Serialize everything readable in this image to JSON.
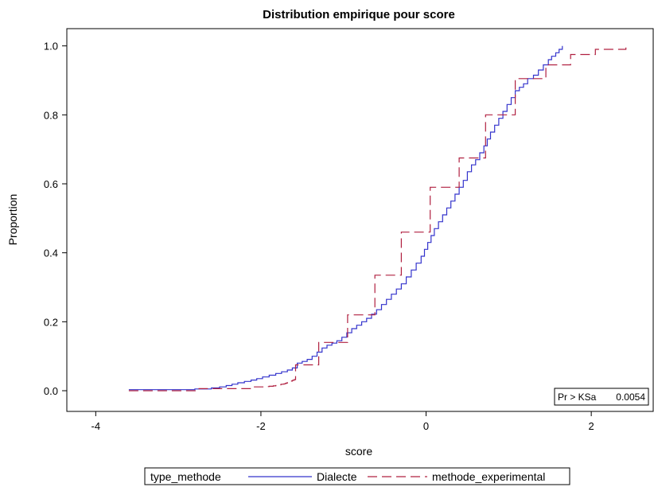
{
  "chart_data": {
    "type": "line",
    "title": "Distribution empirique pour score",
    "xlabel": "score",
    "ylabel": "Proportion",
    "xlim": [
      -4.35,
      2.75
    ],
    "ylim": [
      -0.06,
      1.05
    ],
    "x_ticks": [
      -4,
      -2,
      0,
      2
    ],
    "y_ticks": [
      0.0,
      0.2,
      0.4,
      0.6,
      0.8,
      1.0
    ],
    "x_tick_labels": [
      "-4",
      "-2",
      "0",
      "2"
    ],
    "y_tick_labels": [
      "0.0",
      "0.2",
      "0.4",
      "0.6",
      "0.8",
      "1.0"
    ],
    "grid": false,
    "legend": {
      "placement": "bottom",
      "title": "type_methode",
      "entries": [
        "Dialecte",
        "methode_experimental"
      ]
    },
    "annotation": {
      "label": "Pr > KSa",
      "value": "0.0054",
      "placement": "bottom-right"
    },
    "series": [
      {
        "name": "Dialecte",
        "color": "#3333cc",
        "style": "solid",
        "step": true,
        "points": [
          [
            -3.6,
            0.003
          ],
          [
            -2.8,
            0.005
          ],
          [
            -2.6,
            0.008
          ],
          [
            -2.5,
            0.011
          ],
          [
            -2.42,
            0.015
          ],
          [
            -2.35,
            0.019
          ],
          [
            -2.28,
            0.023
          ],
          [
            -2.2,
            0.027
          ],
          [
            -2.12,
            0.031
          ],
          [
            -2.05,
            0.035
          ],
          [
            -1.98,
            0.04
          ],
          [
            -1.9,
            0.045
          ],
          [
            -1.82,
            0.05
          ],
          [
            -1.75,
            0.055
          ],
          [
            -1.68,
            0.06
          ],
          [
            -1.62,
            0.066
          ],
          [
            -1.56,
            0.08
          ],
          [
            -1.5,
            0.085
          ],
          [
            -1.44,
            0.091
          ],
          [
            -1.38,
            0.1
          ],
          [
            -1.32,
            0.112
          ],
          [
            -1.26,
            0.124
          ],
          [
            -1.2,
            0.132
          ],
          [
            -1.14,
            0.138
          ],
          [
            -1.08,
            0.145
          ],
          [
            -1.02,
            0.155
          ],
          [
            -0.96,
            0.168
          ],
          [
            -0.9,
            0.18
          ],
          [
            -0.84,
            0.19
          ],
          [
            -0.78,
            0.2
          ],
          [
            -0.72,
            0.21
          ],
          [
            -0.66,
            0.222
          ],
          [
            -0.6,
            0.235
          ],
          [
            -0.54,
            0.25
          ],
          [
            -0.48,
            0.265
          ],
          [
            -0.42,
            0.28
          ],
          [
            -0.36,
            0.295
          ],
          [
            -0.3,
            0.31
          ],
          [
            -0.24,
            0.33
          ],
          [
            -0.18,
            0.35
          ],
          [
            -0.12,
            0.37
          ],
          [
            -0.06,
            0.39
          ],
          [
            -0.02,
            0.41
          ],
          [
            0.02,
            0.43
          ],
          [
            0.06,
            0.45
          ],
          [
            0.1,
            0.47
          ],
          [
            0.15,
            0.49
          ],
          [
            0.2,
            0.51
          ],
          [
            0.25,
            0.53
          ],
          [
            0.3,
            0.55
          ],
          [
            0.35,
            0.57
          ],
          [
            0.4,
            0.59
          ],
          [
            0.45,
            0.61
          ],
          [
            0.5,
            0.635
          ],
          [
            0.55,
            0.655
          ],
          [
            0.6,
            0.67
          ],
          [
            0.65,
            0.69
          ],
          [
            0.7,
            0.71
          ],
          [
            0.74,
            0.73
          ],
          [
            0.78,
            0.75
          ],
          [
            0.83,
            0.77
          ],
          [
            0.88,
            0.79
          ],
          [
            0.93,
            0.81
          ],
          [
            0.98,
            0.83
          ],
          [
            1.03,
            0.85
          ],
          [
            1.08,
            0.87
          ],
          [
            1.13,
            0.88
          ],
          [
            1.18,
            0.89
          ],
          [
            1.23,
            0.905
          ],
          [
            1.3,
            0.915
          ],
          [
            1.36,
            0.93
          ],
          [
            1.42,
            0.945
          ],
          [
            1.48,
            0.96
          ],
          [
            1.52,
            0.97
          ],
          [
            1.57,
            0.98
          ],
          [
            1.61,
            0.99
          ],
          [
            1.65,
            1.0
          ]
        ]
      },
      {
        "name": "methode_experimental",
        "color": "#b02040",
        "style": "dashed",
        "step": true,
        "points": [
          [
            -3.6,
            0.0
          ],
          [
            -2.75,
            0.006
          ],
          [
            -2.1,
            0.011
          ],
          [
            -1.95,
            0.012
          ],
          [
            -1.9,
            0.013
          ],
          [
            -1.85,
            0.014
          ],
          [
            -1.82,
            0.015
          ],
          [
            -1.8,
            0.016
          ],
          [
            -1.78,
            0.017
          ],
          [
            -1.76,
            0.018
          ],
          [
            -1.75,
            0.019
          ],
          [
            -1.72,
            0.02
          ],
          [
            -1.7,
            0.022
          ],
          [
            -1.68,
            0.024
          ],
          [
            -1.66,
            0.026
          ],
          [
            -1.64,
            0.028
          ],
          [
            -1.62,
            0.03
          ],
          [
            -1.6,
            0.032
          ],
          [
            -1.58,
            0.075
          ],
          [
            -1.3,
            0.14
          ],
          [
            -0.95,
            0.22
          ],
          [
            -0.62,
            0.335
          ],
          [
            -0.3,
            0.46
          ],
          [
            0.05,
            0.59
          ],
          [
            0.4,
            0.675
          ],
          [
            0.72,
            0.8
          ],
          [
            1.08,
            0.905
          ],
          [
            1.45,
            0.945
          ],
          [
            1.75,
            0.975
          ],
          [
            2.05,
            0.99
          ],
          [
            2.42,
            0.995
          ]
        ]
      }
    ]
  }
}
